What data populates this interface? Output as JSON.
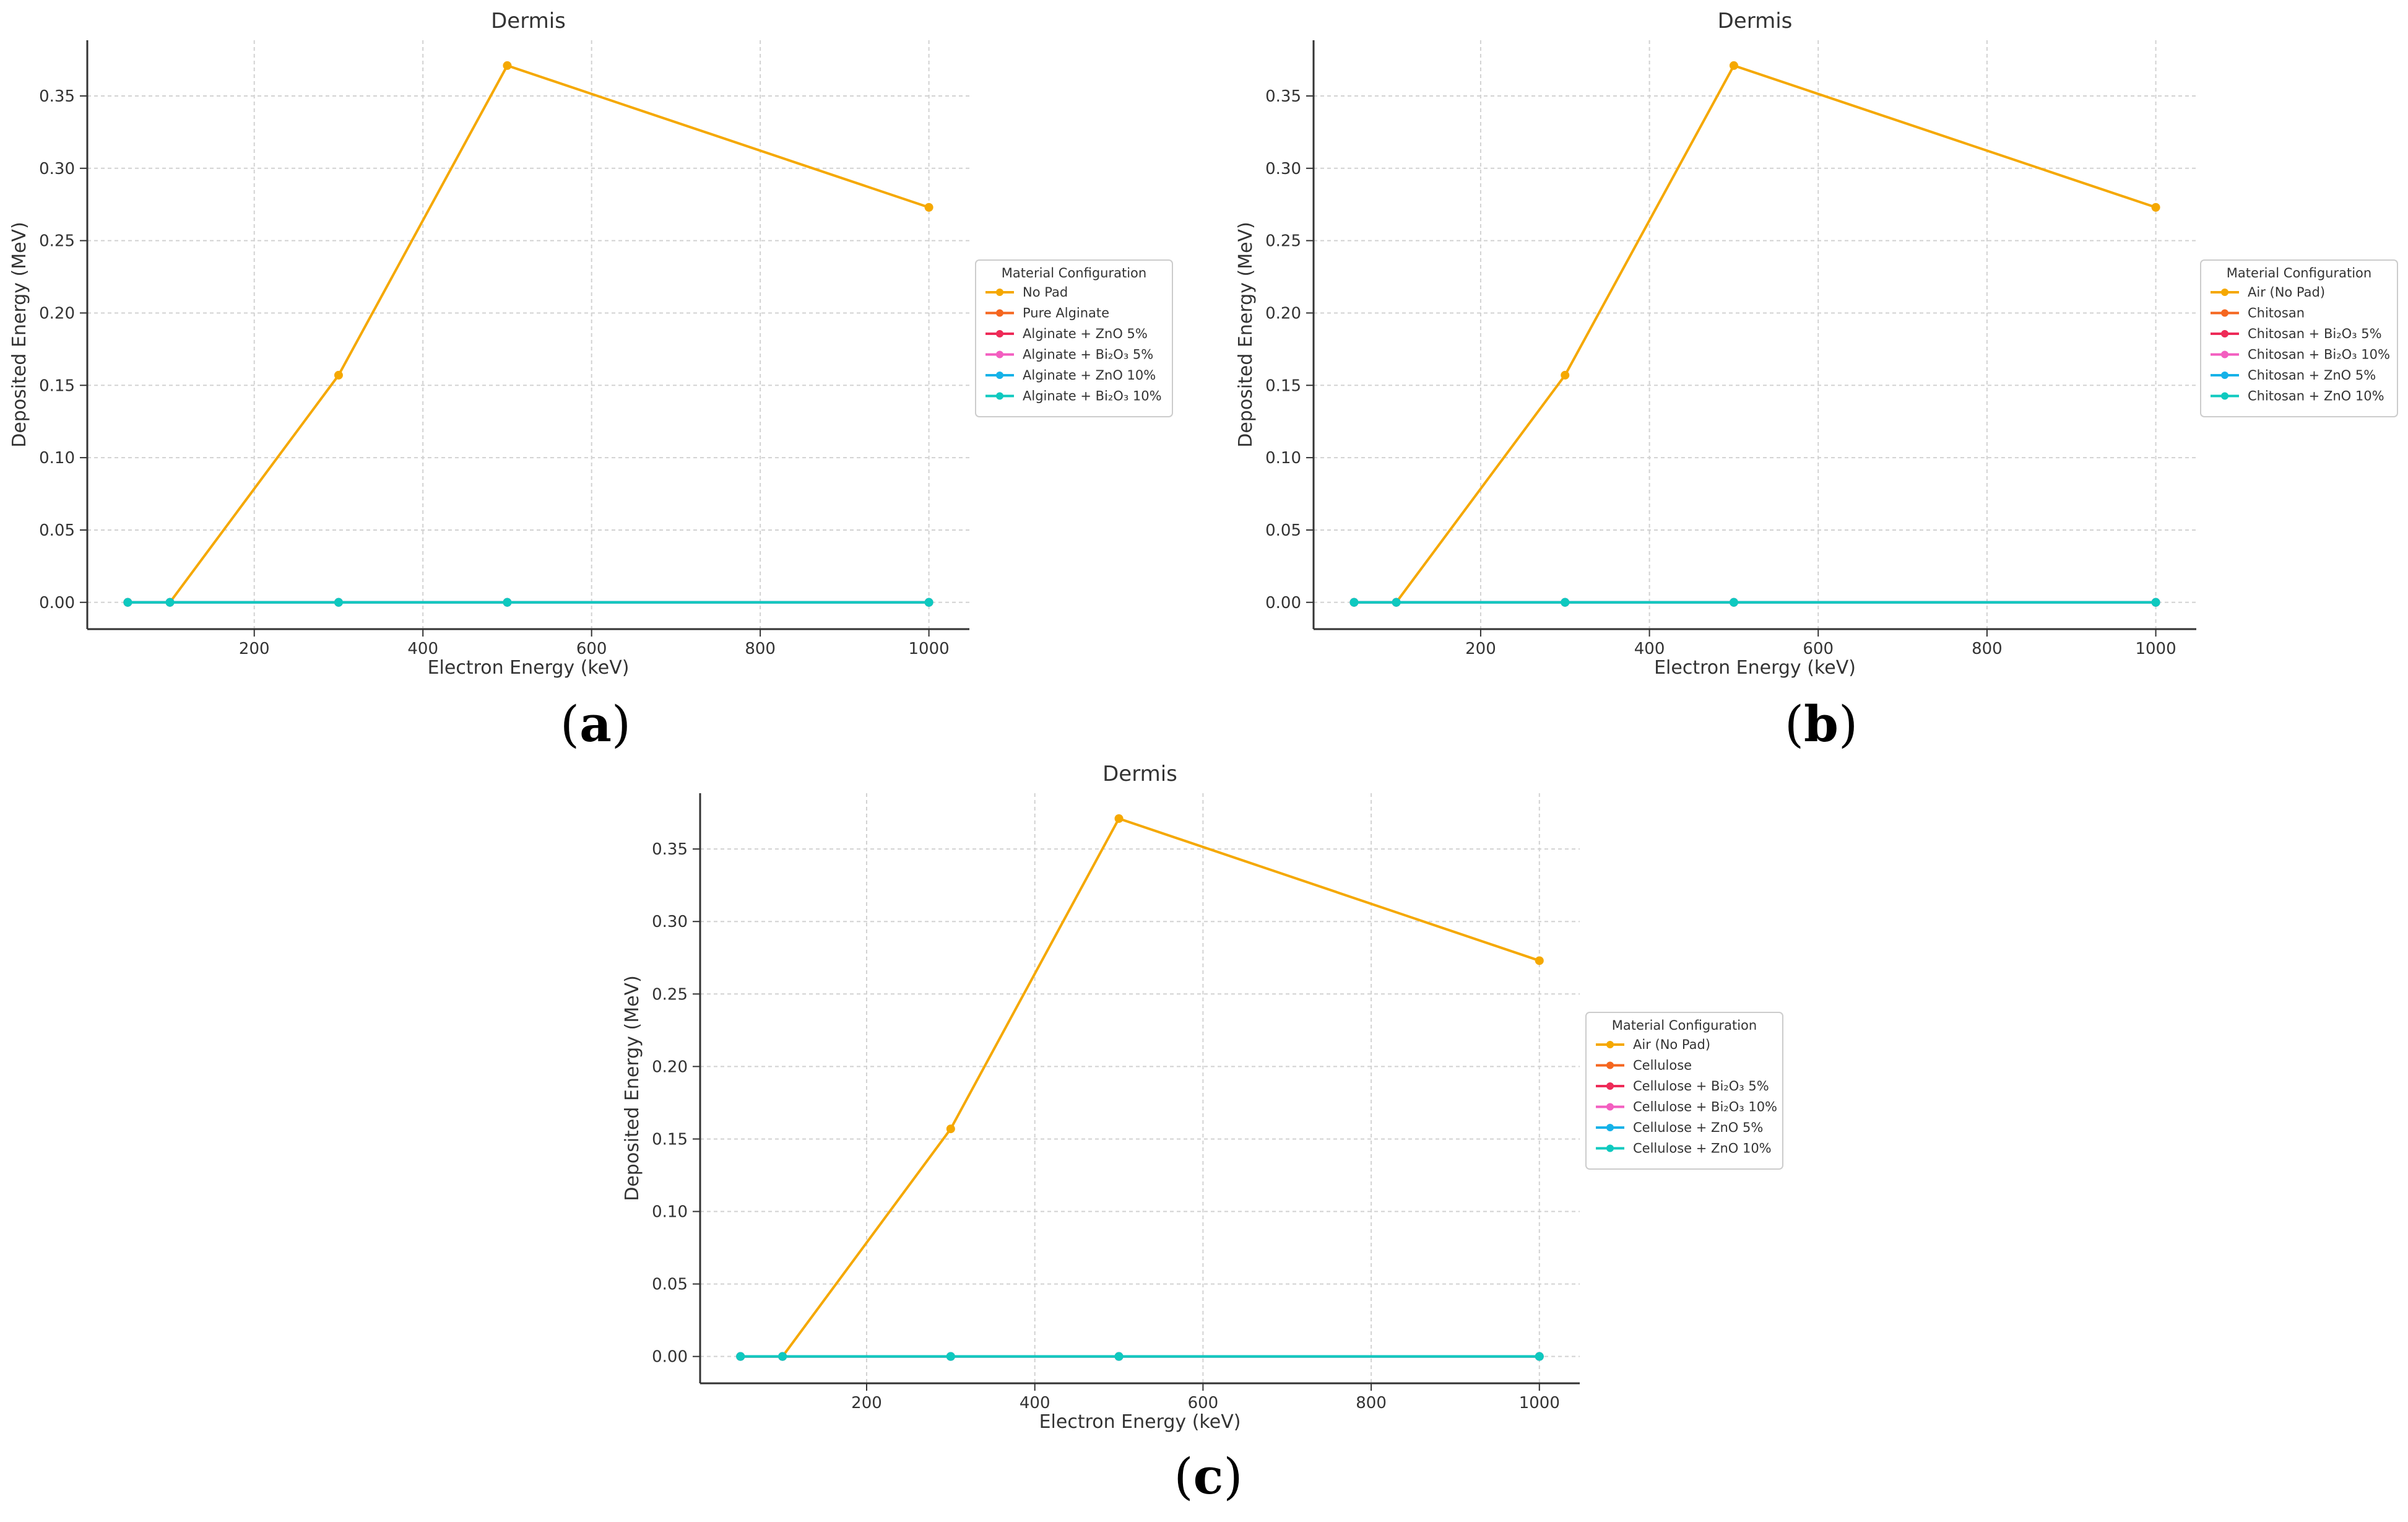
{
  "chart_data": [
    {
      "type": "line",
      "panel_label": {
        "open": "(",
        "letter": "a",
        "close": ")"
      },
      "title": "Dermis",
      "xlabel": "Electron Energy (keV)",
      "ylabel": "Deposited Energy (MeV)",
      "xlim": [
        2,
        1048
      ],
      "ylim": [
        -0.0185,
        0.3885
      ],
      "xticks": [
        200,
        400,
        600,
        800,
        1000
      ],
      "yticks": [
        0.0,
        0.05,
        0.1,
        0.15,
        0.2,
        0.25,
        0.3,
        0.35
      ],
      "xtick_labels": [
        "200",
        "400",
        "600",
        "800",
        "1000"
      ],
      "ytick_labels": [
        "0.00",
        "0.05",
        "0.10",
        "0.15",
        "0.20",
        "0.25",
        "0.30",
        "0.35"
      ],
      "grid": true,
      "legend_title": "Material Configuration",
      "legend_position": "center-right",
      "x": [
        50,
        100,
        300,
        500,
        1000
      ],
      "series": [
        {
          "name": "No Pad",
          "color": "#f5a800",
          "values": [
            0.0,
            0.0,
            0.157,
            0.371,
            0.273
          ]
        },
        {
          "name": "Pure Alginate",
          "color": "#f5661f",
          "values": [
            0.0,
            0.0,
            0.0,
            0.0,
            0.0
          ]
        },
        {
          "name": "Alginate + ZnO 5%",
          "color": "#ee2b58",
          "values": [
            0.0,
            0.0,
            0.0,
            0.0,
            0.0
          ]
        },
        {
          "name": "Alginate + Bi₂O₃ 5%",
          "color": "#f35ec0",
          "values": [
            0.0,
            0.0,
            0.0,
            0.0,
            0.0
          ]
        },
        {
          "name": "Alginate + ZnO 10%",
          "color": "#15b2e8",
          "values": [
            0.0,
            0.0,
            0.0,
            0.0,
            0.0
          ]
        },
        {
          "name": "Alginate + Bi₂O₃ 10%",
          "color": "#0ec9bf",
          "values": [
            0.0,
            0.0,
            0.0,
            0.0,
            0.0
          ]
        }
      ]
    },
    {
      "type": "line",
      "panel_label": {
        "open": "(",
        "letter": "b",
        "close": ")"
      },
      "title": "Dermis",
      "xlabel": "Electron Energy (keV)",
      "ylabel": "Deposited Energy (MeV)",
      "xlim": [
        2,
        1048
      ],
      "ylim": [
        -0.0185,
        0.3885
      ],
      "xticks": [
        200,
        400,
        600,
        800,
        1000
      ],
      "yticks": [
        0.0,
        0.05,
        0.1,
        0.15,
        0.2,
        0.25,
        0.3,
        0.35
      ],
      "xtick_labels": [
        "200",
        "400",
        "600",
        "800",
        "1000"
      ],
      "ytick_labels": [
        "0.00",
        "0.05",
        "0.10",
        "0.15",
        "0.20",
        "0.25",
        "0.30",
        "0.35"
      ],
      "grid": true,
      "legend_title": "Material Configuration",
      "legend_position": "center-right",
      "x": [
        50,
        100,
        300,
        500,
        1000
      ],
      "series": [
        {
          "name": "Air (No Pad)",
          "color": "#f5a800",
          "values": [
            0.0,
            0.0,
            0.157,
            0.371,
            0.273
          ]
        },
        {
          "name": "Chitosan",
          "color": "#f5661f",
          "values": [
            0.0,
            0.0,
            0.0,
            0.0,
            0.0
          ]
        },
        {
          "name": "Chitosan + Bi₂O₃ 5%",
          "color": "#ee2b58",
          "values": [
            0.0,
            0.0,
            0.0,
            0.0,
            0.0
          ]
        },
        {
          "name": "Chitosan + Bi₂O₃ 10%",
          "color": "#f35ec0",
          "values": [
            0.0,
            0.0,
            0.0,
            0.0,
            0.0
          ]
        },
        {
          "name": "Chitosan + ZnO 5%",
          "color": "#15b2e8",
          "values": [
            0.0,
            0.0,
            0.0,
            0.0,
            0.0
          ]
        },
        {
          "name": "Chitosan + ZnO 10%",
          "color": "#0ec9bf",
          "values": [
            0.0,
            0.0,
            0.0,
            0.0,
            0.0
          ]
        }
      ]
    },
    {
      "type": "line",
      "panel_label": {
        "open": "(",
        "letter": "c",
        "close": ")"
      },
      "title": "Dermis",
      "xlabel": "Electron Energy (keV)",
      "ylabel": "Deposited Energy (MeV)",
      "xlim": [
        2,
        1048
      ],
      "ylim": [
        -0.0185,
        0.3885
      ],
      "xticks": [
        200,
        400,
        600,
        800,
        1000
      ],
      "yticks": [
        0.0,
        0.05,
        0.1,
        0.15,
        0.2,
        0.25,
        0.3,
        0.35
      ],
      "xtick_labels": [
        "200",
        "400",
        "600",
        "800",
        "1000"
      ],
      "ytick_labels": [
        "0.00",
        "0.05",
        "0.10",
        "0.15",
        "0.20",
        "0.25",
        "0.30",
        "0.35"
      ],
      "grid": true,
      "legend_title": "Material Configuration",
      "legend_position": "center-right",
      "x": [
        50,
        100,
        300,
        500,
        1000
      ],
      "series": [
        {
          "name": "Air (No Pad)",
          "color": "#f5a800",
          "values": [
            0.0,
            0.0,
            0.157,
            0.371,
            0.273
          ]
        },
        {
          "name": "Cellulose",
          "color": "#f5661f",
          "values": [
            0.0,
            0.0,
            0.0,
            0.0,
            0.0
          ]
        },
        {
          "name": "Cellulose + Bi₂O₃ 5%",
          "color": "#ee2b58",
          "values": [
            0.0,
            0.0,
            0.0,
            0.0,
            0.0
          ]
        },
        {
          "name": "Cellulose + Bi₂O₃ 10%",
          "color": "#f35ec0",
          "values": [
            0.0,
            0.0,
            0.0,
            0.0,
            0.0
          ]
        },
        {
          "name": "Cellulose + ZnO 5%",
          "color": "#15b2e8",
          "values": [
            0.0,
            0.0,
            0.0,
            0.0,
            0.0
          ]
        },
        {
          "name": "Cellulose + ZnO 10%",
          "color": "#0ec9bf",
          "values": [
            0.0,
            0.0,
            0.0,
            0.0,
            0.0
          ]
        }
      ]
    }
  ]
}
